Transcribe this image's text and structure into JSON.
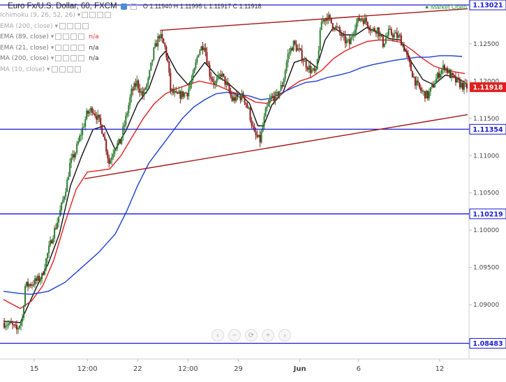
{
  "header": {
    "symbol_title": "Euro Fx/U.S. Dollar, 60, FXCM",
    "ohlc": "O 1.11940  H 1.11995  L 1.11917  C 1.11918",
    "market_status": "Market Open"
  },
  "indicators": [
    {
      "name": "Ichimoku (9, 26, 52, 26)",
      "value": "",
      "dim": true
    },
    {
      "name": "EMA (200, close)",
      "value": "",
      "dim": true
    },
    {
      "name": "EMA (89, close)",
      "value": "n/a",
      "dim": false
    },
    {
      "name": "EMA (21, close)",
      "value": "n/a",
      "dim": false
    },
    {
      "name": "MA (200, close)",
      "value": "n/a",
      "dim": false
    },
    {
      "name": "MA (10, close)",
      "value": "",
      "dim": true
    }
  ],
  "colors": {
    "candle_up": "#2e7d32",
    "candle_down": "#8b1a1a",
    "ema21": "#111111",
    "ema89": "#e02020",
    "ma200": "#1a3fd1",
    "trendline": "#a31515",
    "hline": "#1a1ad6",
    "last_price_bg": "#e02020"
  },
  "nav_buttons": [
    "‹",
    "−",
    "⟳",
    "+",
    "›"
  ],
  "chart_data": {
    "type": "candlestick",
    "ylim": [
      1.0845,
      1.1305
    ],
    "xlim": [
      0,
      166
    ],
    "y_ticks": [
      1.09,
      1.095,
      1.1,
      1.105,
      1.11,
      1.115,
      1.12,
      1.125
    ],
    "y_tick_labels": [
      "1.09000",
      "1.09500",
      "1.10000",
      "1.10500",
      "1.11000",
      "1.11500",
      "1.12000",
      "1.12500"
    ],
    "x_ticks": [
      {
        "x": 11,
        "label": "15"
      },
      {
        "x": 30,
        "label": "12:00"
      },
      {
        "x": 48,
        "label": "22"
      },
      {
        "x": 66,
        "label": "12:00"
      },
      {
        "x": 84,
        "label": "29"
      },
      {
        "x": 106,
        "label": "Jun"
      },
      {
        "x": 127,
        "label": "6"
      },
      {
        "x": 156,
        "label": "12"
      }
    ],
    "horizontal_levels": [
      1.13021,
      1.11354,
      1.10219,
      1.08483
    ],
    "level_labels": [
      "1.13021",
      "1.11354",
      "1.10219",
      "1.08483"
    ],
    "last_price": 1.11918,
    "last_price_label": "1.11918",
    "trendlines": [
      {
        "x1": 56,
        "y1": 1.1268,
        "x2": 166,
        "y2": 1.1297
      },
      {
        "x1": 29,
        "y1": 1.1069,
        "x2": 166,
        "y2": 1.1155
      }
    ],
    "price_path": [
      [
        0,
        1.0876
      ],
      [
        3,
        1.0873
      ],
      [
        5,
        1.0866
      ],
      [
        7,
        1.0882
      ],
      [
        8,
        1.0925
      ],
      [
        10,
        1.0928
      ],
      [
        12,
        1.0932
      ],
      [
        14,
        1.0938
      ],
      [
        16,
        1.0968
      ],
      [
        18,
        1.0995
      ],
      [
        19,
        1.1005
      ],
      [
        21,
        1.1032
      ],
      [
        23,
        1.1065
      ],
      [
        24,
        1.1088
      ],
      [
        26,
        1.1105
      ],
      [
        28,
        1.113
      ],
      [
        30,
        1.1155
      ],
      [
        32,
        1.1163
      ],
      [
        34,
        1.115
      ],
      [
        36,
        1.113
      ],
      [
        38,
        1.109
      ],
      [
        40,
        1.1112
      ],
      [
        42,
        1.1118
      ],
      [
        44,
        1.115
      ],
      [
        46,
        1.1185
      ],
      [
        48,
        1.1198
      ],
      [
        50,
        1.118
      ],
      [
        52,
        1.12
      ],
      [
        54,
        1.124
      ],
      [
        56,
        1.1262
      ],
      [
        58,
        1.1245
      ],
      [
        59,
        1.1225
      ],
      [
        60,
        1.1188
      ],
      [
        62,
        1.118
      ],
      [
        64,
        1.1182
      ],
      [
        66,
        1.1185
      ],
      [
        68,
        1.1205
      ],
      [
        70,
        1.124
      ],
      [
        72,
        1.125
      ],
      [
        74,
        1.121
      ],
      [
        76,
        1.1195
      ],
      [
        78,
        1.121
      ],
      [
        80,
        1.1195
      ],
      [
        82,
        1.1175
      ],
      [
        84,
        1.1178
      ],
      [
        86,
        1.118
      ],
      [
        88,
        1.116
      ],
      [
        90,
        1.1128
      ],
      [
        92,
        1.112
      ],
      [
        94,
        1.1158
      ],
      [
        96,
        1.1178
      ],
      [
        98,
        1.118
      ],
      [
        100,
        1.1195
      ],
      [
        102,
        1.1235
      ],
      [
        104,
        1.125
      ],
      [
        106,
        1.124
      ],
      [
        108,
        1.1225
      ],
      [
        110,
        1.1215
      ],
      [
        112,
        1.121
      ],
      [
        114,
        1.128
      ],
      [
        116,
        1.1287
      ],
      [
        118,
        1.1275
      ],
      [
        120,
        1.1268
      ],
      [
        122,
        1.1255
      ],
      [
        124,
        1.125
      ],
      [
        126,
        1.1275
      ],
      [
        128,
        1.1285
      ],
      [
        130,
        1.128
      ],
      [
        132,
        1.1268
      ],
      [
        134,
        1.127
      ],
      [
        136,
        1.125
      ],
      [
        138,
        1.1265
      ],
      [
        140,
        1.1262
      ],
      [
        142,
        1.1258
      ],
      [
        144,
        1.124
      ],
      [
        146,
        1.1215
      ],
      [
        148,
        1.1195
      ],
      [
        150,
        1.1185
      ],
      [
        152,
        1.118
      ],
      [
        154,
        1.1195
      ],
      [
        156,
        1.121
      ],
      [
        158,
        1.122
      ],
      [
        160,
        1.1208
      ],
      [
        162,
        1.12
      ],
      [
        164,
        1.1195
      ],
      [
        165,
        1.1192
      ]
    ],
    "series": [
      {
        "name": "EMA (21, close)",
        "points": [
          [
            0,
            1.0878
          ],
          [
            6,
            1.0876
          ],
          [
            8,
            1.0892
          ],
          [
            12,
            1.0925
          ],
          [
            16,
            1.0955
          ],
          [
            20,
            1.0995
          ],
          [
            24,
            1.106
          ],
          [
            28,
            1.11
          ],
          [
            32,
            1.1135
          ],
          [
            36,
            1.114
          ],
          [
            40,
            1.1108
          ],
          [
            44,
            1.1135
          ],
          [
            48,
            1.117
          ],
          [
            52,
            1.119
          ],
          [
            56,
            1.1232
          ],
          [
            58,
            1.124
          ],
          [
            62,
            1.1212
          ],
          [
            66,
            1.1195
          ],
          [
            70,
            1.1215
          ],
          [
            72,
            1.1225
          ],
          [
            76,
            1.1208
          ],
          [
            80,
            1.1198
          ],
          [
            84,
            1.1185
          ],
          [
            88,
            1.117
          ],
          [
            91,
            1.114
          ],
          [
            93,
            1.114
          ],
          [
            96,
            1.1168
          ],
          [
            100,
            1.1185
          ],
          [
            104,
            1.1225
          ],
          [
            108,
            1.123
          ],
          [
            112,
            1.1218
          ],
          [
            115,
            1.1255
          ],
          [
            118,
            1.1272
          ],
          [
            122,
            1.1262
          ],
          [
            126,
            1.1262
          ],
          [
            130,
            1.1272
          ],
          [
            134,
            1.1265
          ],
          [
            138,
            1.1257
          ],
          [
            142,
            1.1255
          ],
          [
            146,
            1.1225
          ],
          [
            150,
            1.1202
          ],
          [
            154,
            1.1195
          ],
          [
            158,
            1.1208
          ],
          [
            162,
            1.1205
          ],
          [
            165,
            1.1198
          ]
        ]
      },
      {
        "name": "EMA (89, close)",
        "points": [
          [
            0,
            1.0907
          ],
          [
            6,
            1.0895
          ],
          [
            10,
            1.0905
          ],
          [
            14,
            1.0925
          ],
          [
            18,
            1.096
          ],
          [
            22,
            1.101
          ],
          [
            26,
            1.1055
          ],
          [
            30,
            1.1078
          ],
          [
            34,
            1.108
          ],
          [
            38,
            1.1082
          ],
          [
            42,
            1.11
          ],
          [
            46,
            1.1125
          ],
          [
            50,
            1.115
          ],
          [
            54,
            1.117
          ],
          [
            58,
            1.1183
          ],
          [
            62,
            1.119
          ],
          [
            66,
            1.1195
          ],
          [
            70,
            1.12
          ],
          [
            76,
            1.1195
          ],
          [
            82,
            1.1185
          ],
          [
            86,
            1.118
          ],
          [
            90,
            1.1172
          ],
          [
            94,
            1.117
          ],
          [
            98,
            1.1178
          ],
          [
            102,
            1.119
          ],
          [
            106,
            1.12
          ],
          [
            110,
            1.1205
          ],
          [
            114,
            1.1215
          ],
          [
            118,
            1.123
          ],
          [
            122,
            1.124
          ],
          [
            126,
            1.1247
          ],
          [
            130,
            1.1253
          ],
          [
            134,
            1.1255
          ],
          [
            138,
            1.1255
          ],
          [
            142,
            1.1252
          ],
          [
            146,
            1.1242
          ],
          [
            150,
            1.123
          ],
          [
            154,
            1.122
          ],
          [
            158,
            1.1215
          ],
          [
            162,
            1.1212
          ],
          [
            165,
            1.121
          ]
        ]
      },
      {
        "name": "MA (200, close)",
        "points": [
          [
            0,
            1.0918
          ],
          [
            6,
            1.0915
          ],
          [
            10,
            1.0914
          ],
          [
            16,
            1.0918
          ],
          [
            22,
            1.093
          ],
          [
            28,
            1.095
          ],
          [
            34,
            1.097
          ],
          [
            40,
            1.0995
          ],
          [
            44,
            1.1025
          ],
          [
            48,
            1.106
          ],
          [
            52,
            1.109
          ],
          [
            56,
            1.111
          ],
          [
            60,
            1.113
          ],
          [
            64,
            1.115
          ],
          [
            68,
            1.1165
          ],
          [
            72,
            1.1175
          ],
          [
            76,
            1.1183
          ],
          [
            80,
            1.1185
          ],
          [
            84,
            1.1182
          ],
          [
            88,
            1.118
          ],
          [
            92,
            1.1175
          ],
          [
            96,
            1.1177
          ],
          [
            100,
            1.1185
          ],
          [
            104,
            1.1192
          ],
          [
            108,
            1.1198
          ],
          [
            112,
            1.12
          ],
          [
            116,
            1.1205
          ],
          [
            120,
            1.1208
          ],
          [
            124,
            1.1212
          ],
          [
            128,
            1.1218
          ],
          [
            132,
            1.1222
          ],
          [
            136,
            1.1225
          ],
          [
            140,
            1.1228
          ],
          [
            144,
            1.123
          ],
          [
            148,
            1.1232
          ],
          [
            152,
            1.1232
          ],
          [
            156,
            1.1234
          ],
          [
            160,
            1.1234
          ],
          [
            164,
            1.1233
          ]
        ]
      }
    ],
    "grid": false,
    "legend": "top-left"
  }
}
